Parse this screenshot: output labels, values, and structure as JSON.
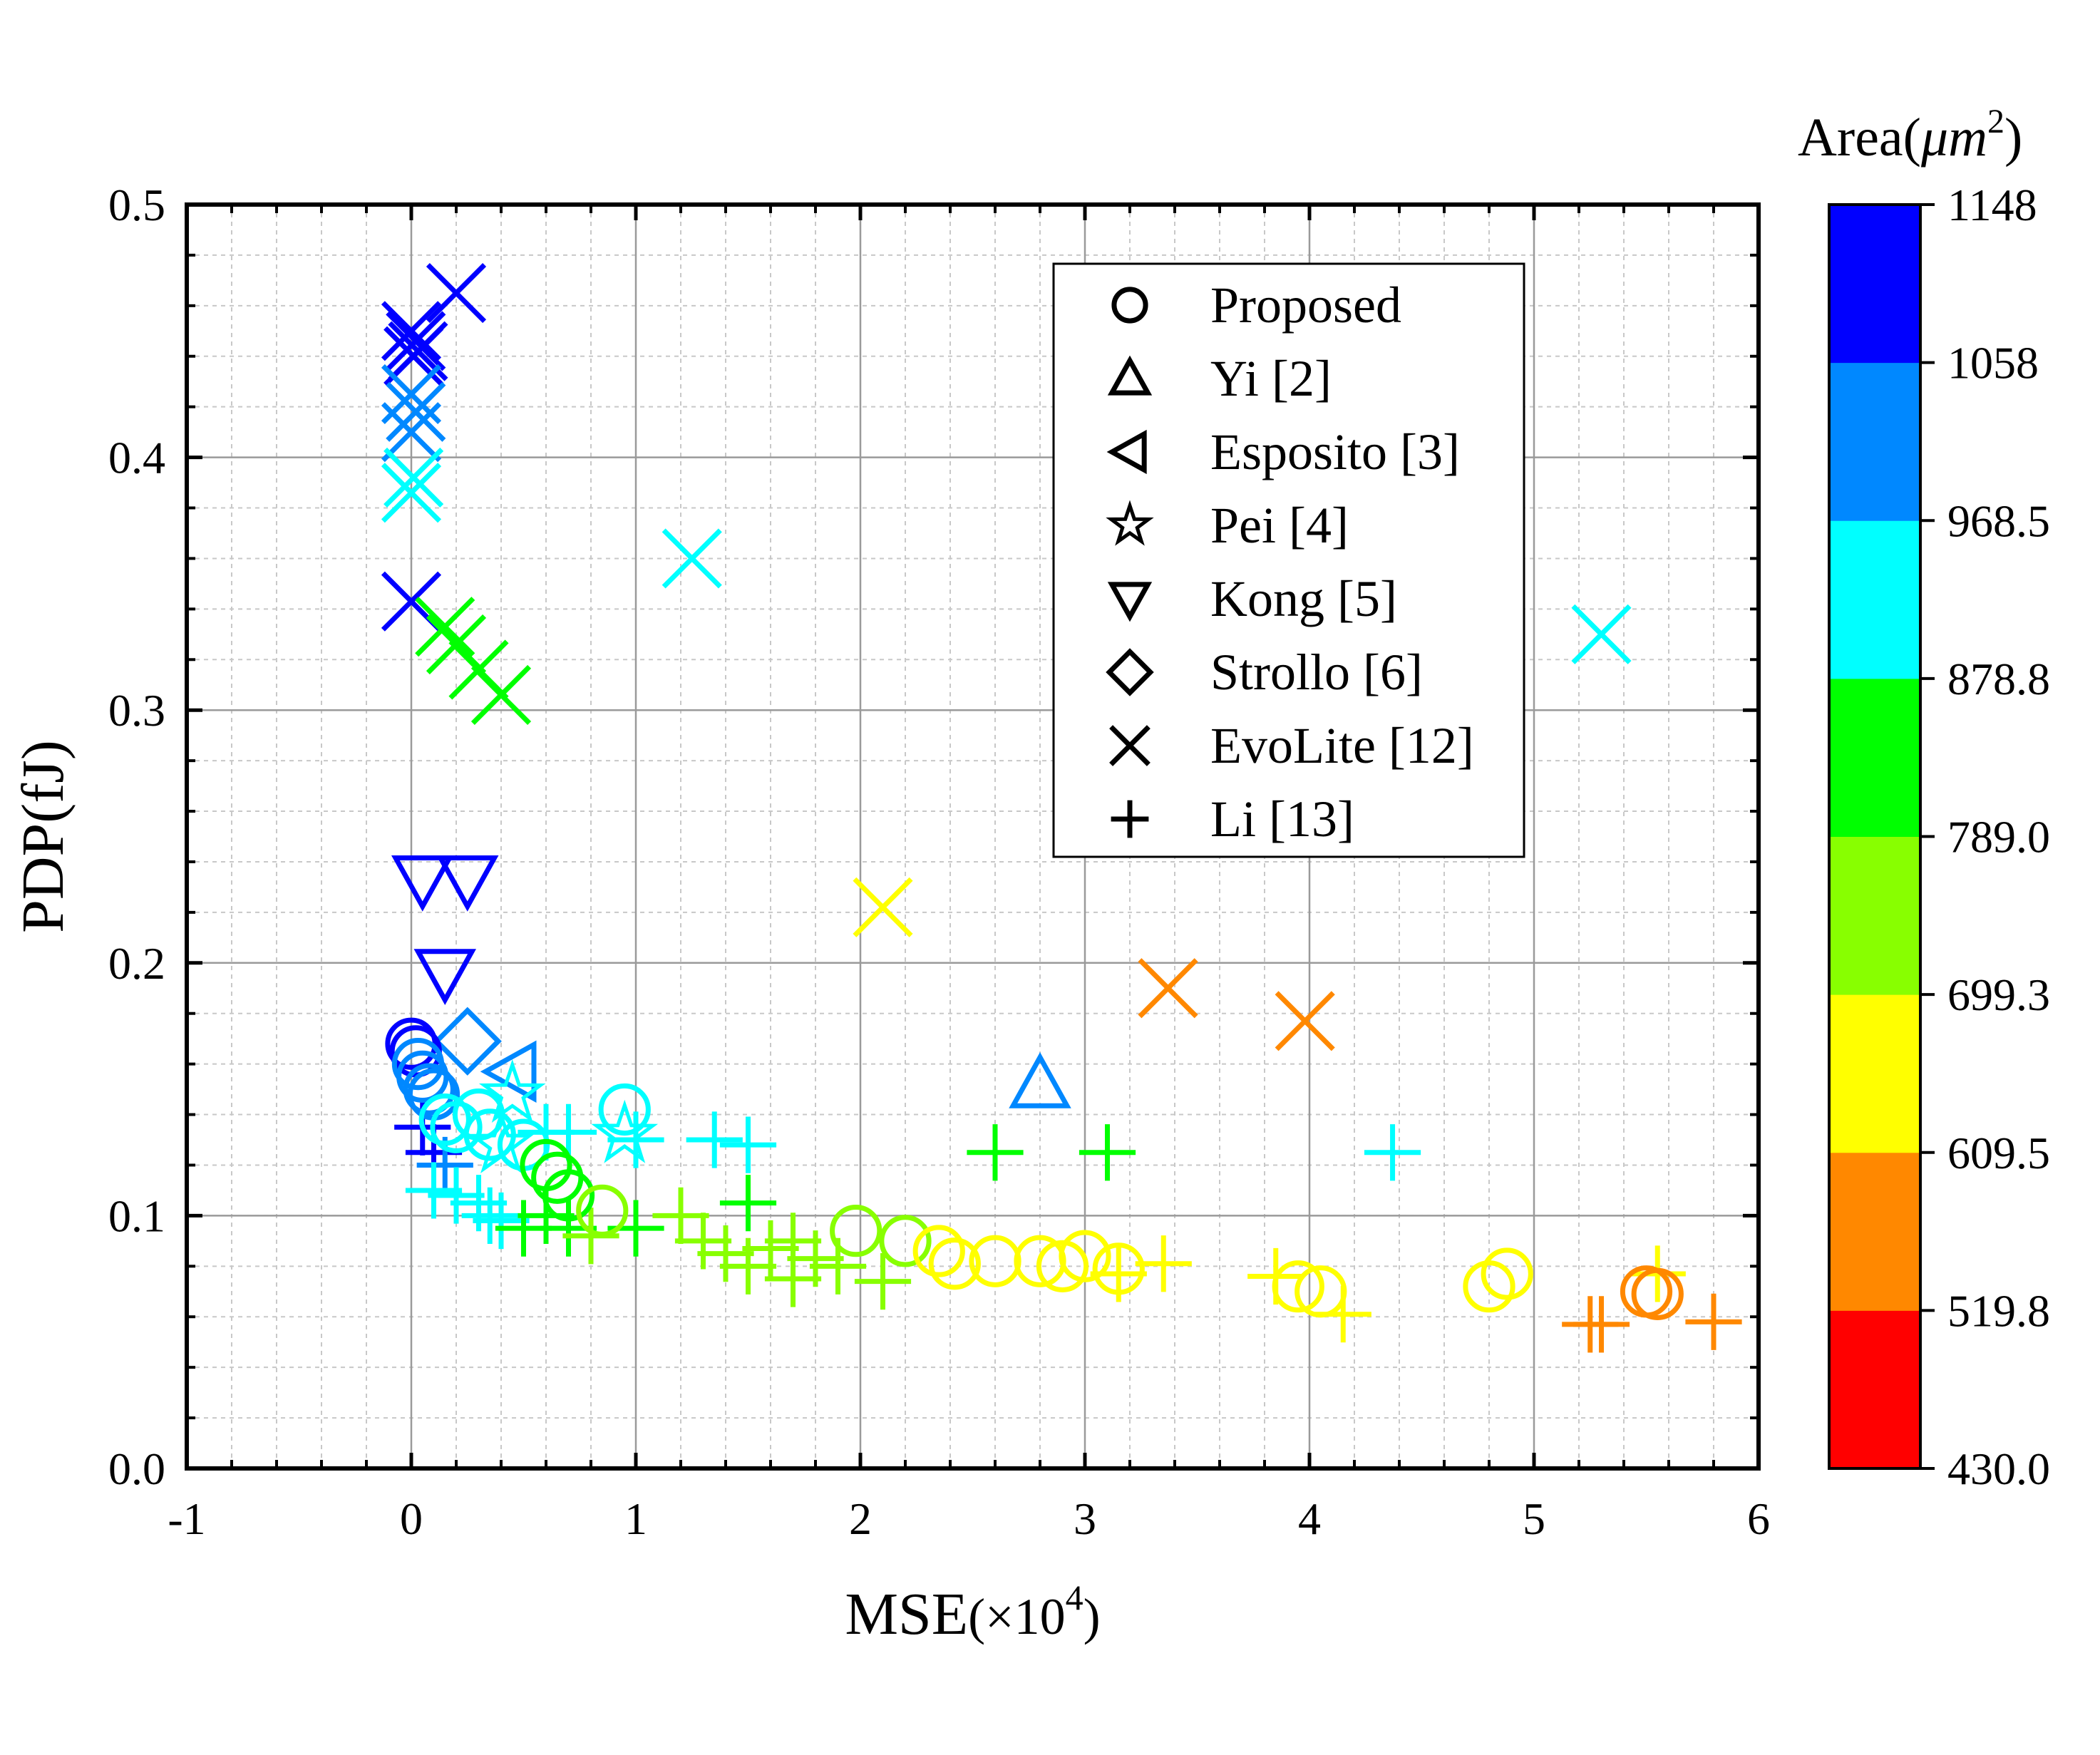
{
  "chart_data": {
    "type": "scatter",
    "xlabel": "MSE",
    "xlabel_suffix": "(×10",
    "xlabel_exp": "4",
    "xlabel_close": ")",
    "ylabel": "PDP(fJ)",
    "xlim": [
      -1,
      6
    ],
    "ylim": [
      0,
      0.5
    ],
    "x_ticks": [
      -1,
      0,
      1,
      2,
      3,
      4,
      5,
      6
    ],
    "x_tick_labels": [
      "-1",
      "0",
      "1",
      "2",
      "3",
      "4",
      "5",
      "6"
    ],
    "y_ticks": [
      0,
      0.1,
      0.2,
      0.3,
      0.4,
      0.5
    ],
    "y_tick_labels": [
      "0.0",
      "0.1",
      "0.2",
      "0.3",
      "0.4",
      "0.5"
    ],
    "grid": true,
    "legend_position": "top-right",
    "colorbar": {
      "title": "Area(",
      "title_unit": "μm",
      "title_exp": "2",
      "title_close": ")",
      "range": [
        430.0,
        1148
      ],
      "levels": [
        430.0,
        519.8,
        609.5,
        699.3,
        789.0,
        878.8,
        968.5,
        1058,
        1148
      ],
      "labels": [
        "430.0",
        "519.8",
        "609.5",
        "699.3",
        "789.0",
        "878.8",
        "968.5",
        "1058",
        "1148"
      ],
      "colors": [
        "#ff0000",
        "#ff8800",
        "#ffff00",
        "#88ff00",
        "#00ff00",
        "#00ffff",
        "#0088ff",
        "#0000ff"
      ]
    },
    "series": [
      {
        "name": "Proposed",
        "marker": "circle",
        "points": [
          [
            0.0,
            0.168,
            1090
          ],
          [
            0.02,
            0.165,
            1060
          ],
          [
            0.03,
            0.16,
            1040
          ],
          [
            0.05,
            0.155,
            1010
          ],
          [
            0.08,
            0.15,
            990
          ],
          [
            0.1,
            0.148,
            980
          ],
          [
            0.15,
            0.138,
            960
          ],
          [
            0.2,
            0.135,
            950
          ],
          [
            0.3,
            0.14,
            920
          ],
          [
            0.35,
            0.132,
            905
          ],
          [
            0.5,
            0.128,
            880
          ],
          [
            0.6,
            0.12,
            850
          ],
          [
            0.65,
            0.115,
            830
          ],
          [
            0.7,
            0.108,
            800
          ],
          [
            0.85,
            0.102,
            760
          ],
          [
            0.95,
            0.142,
            940
          ],
          [
            1.98,
            0.094,
            730
          ],
          [
            2.2,
            0.09,
            700
          ],
          [
            2.35,
            0.086,
            690
          ],
          [
            2.42,
            0.081,
            680
          ],
          [
            2.6,
            0.082,
            670
          ],
          [
            2.8,
            0.082,
            665
          ],
          [
            2.9,
            0.08,
            660
          ],
          [
            3.0,
            0.084,
            655
          ],
          [
            3.15,
            0.079,
            650
          ],
          [
            3.95,
            0.072,
            640
          ],
          [
            4.05,
            0.07,
            635
          ],
          [
            4.8,
            0.072,
            630
          ],
          [
            4.88,
            0.077,
            625
          ],
          [
            5.5,
            0.07,
            590
          ],
          [
            5.55,
            0.069,
            580
          ]
        ]
      },
      {
        "name": "Yi [2]",
        "marker": "triangle-up",
        "points": [
          [
            2.8,
            0.152,
            1020
          ]
        ]
      },
      {
        "name": "Esposito [3]",
        "marker": "triangle-left",
        "points": [
          [
            0.45,
            0.157,
            1000
          ]
        ]
      },
      {
        "name": "Pei [4]",
        "marker": "star",
        "points": [
          [
            0.45,
            0.148,
            920
          ],
          [
            0.95,
            0.132,
            910
          ],
          [
            0.4,
            0.128,
            930
          ]
        ]
      },
      {
        "name": "Kong [5]",
        "marker": "triangle-down",
        "points": [
          [
            0.05,
            0.233,
            1090
          ],
          [
            0.25,
            0.233,
            1080
          ],
          [
            0.15,
            0.196,
            1080
          ]
        ]
      },
      {
        "name": "Strollo [6]",
        "marker": "diamond",
        "points": [
          [
            0.25,
            0.169,
            1030
          ]
        ]
      },
      {
        "name": "EvoLite [12]",
        "marker": "x",
        "points": [
          [
            0.0,
            0.45,
            1100
          ],
          [
            0.02,
            0.446,
            1095
          ],
          [
            0.03,
            0.442,
            1090
          ],
          [
            0.01,
            0.44,
            1085
          ],
          [
            0.2,
            0.465,
            1080
          ],
          [
            0.0,
            0.425,
            1000
          ],
          [
            0.02,
            0.418,
            1010
          ],
          [
            0.0,
            0.41,
            990
          ],
          [
            0.01,
            0.392,
            940
          ],
          [
            0.0,
            0.386,
            930
          ],
          [
            0.0,
            0.343,
            1090
          ],
          [
            1.25,
            0.36,
            930
          ],
          [
            5.3,
            0.33,
            920
          ],
          [
            0.15,
            0.333,
            800
          ],
          [
            0.2,
            0.326,
            790
          ],
          [
            0.3,
            0.316,
            800
          ],
          [
            0.4,
            0.306,
            810
          ],
          [
            2.1,
            0.222,
            690
          ],
          [
            3.37,
            0.19,
            590
          ],
          [
            3.98,
            0.177,
            580
          ]
        ]
      },
      {
        "name": "Li [13]",
        "marker": "plus",
        "points": [
          [
            0.05,
            0.135,
            1090
          ],
          [
            0.1,
            0.125,
            1070
          ],
          [
            0.15,
            0.12,
            1040
          ],
          [
            0.1,
            0.11,
            960
          ],
          [
            0.2,
            0.108,
            950
          ],
          [
            0.3,
            0.105,
            940
          ],
          [
            0.35,
            0.1,
            930
          ],
          [
            0.4,
            0.098,
            920
          ],
          [
            0.5,
            0.095,
            810
          ],
          [
            0.6,
            0.1,
            800
          ],
          [
            0.7,
            0.095,
            790
          ],
          [
            0.8,
            0.092,
            780
          ],
          [
            0.6,
            0.133,
            930
          ],
          [
            0.7,
            0.133,
            935
          ],
          [
            1.0,
            0.13,
            920
          ],
          [
            1.35,
            0.13,
            925
          ],
          [
            1.5,
            0.128,
            930
          ],
          [
            1.0,
            0.095,
            790
          ],
          [
            1.2,
            0.1,
            780
          ],
          [
            1.3,
            0.09,
            770
          ],
          [
            1.5,
            0.105,
            800
          ],
          [
            1.4,
            0.085,
            760
          ],
          [
            1.6,
            0.087,
            750
          ],
          [
            1.7,
            0.09,
            740
          ],
          [
            1.8,
            0.083,
            730
          ],
          [
            1.9,
            0.08,
            730
          ],
          [
            1.5,
            0.08,
            740
          ],
          [
            1.7,
            0.075,
            735
          ],
          [
            2.1,
            0.074,
            720
          ],
          [
            2.6,
            0.125,
            800
          ],
          [
            3.1,
            0.125,
            800
          ],
          [
            3.15,
            0.077,
            660
          ],
          [
            3.35,
            0.081,
            650
          ],
          [
            3.85,
            0.076,
            640
          ],
          [
            4.15,
            0.061,
            640
          ],
          [
            4.37,
            0.125,
            930
          ],
          [
            5.25,
            0.057,
            580
          ],
          [
            5.3,
            0.057,
            575
          ],
          [
            5.55,
            0.077,
            650
          ],
          [
            5.8,
            0.058,
            590
          ]
        ]
      }
    ]
  }
}
